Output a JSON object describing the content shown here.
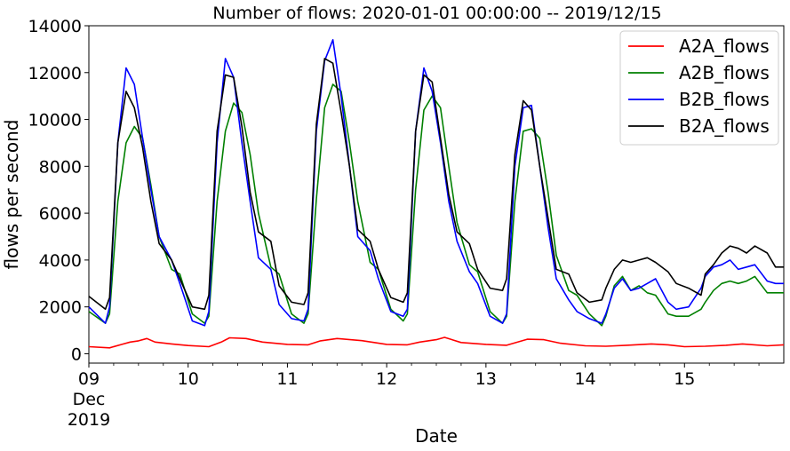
{
  "chart_data": {
    "type": "line",
    "title": "Number of flows: 2020-01-01 00:00:00 -- 2019/12/15",
    "xlabel": "Date",
    "ylabel": "flows per second",
    "xlim": [
      "2019-12-09 00:00",
      "2019-12-16 00:00"
    ],
    "ylim": [
      -400,
      14000
    ],
    "x_ticks": [
      {
        "day": 9,
        "lines": [
          "09",
          "Dec",
          "2019"
        ]
      },
      {
        "day": 10,
        "lines": [
          "10"
        ]
      },
      {
        "day": 11,
        "lines": [
          "11"
        ]
      },
      {
        "day": 12,
        "lines": [
          "12"
        ]
      },
      {
        "day": 13,
        "lines": [
          "13"
        ]
      },
      {
        "day": 14,
        "lines": [
          "14"
        ]
      },
      {
        "day": 15,
        "lines": [
          "15"
        ]
      }
    ],
    "y_ticks": [
      0,
      2000,
      4000,
      6000,
      8000,
      10000,
      12000,
      14000
    ],
    "grid": false,
    "legend_position": "top-right",
    "series": [
      {
        "name": "A2A_flows",
        "color": "#ff0000",
        "x": [
          "2019-12-09 00:00",
          "2019-12-09 05:00",
          "2019-12-09 08:00",
          "2019-12-09 10:00",
          "2019-12-09 12:00",
          "2019-12-09 14:00",
          "2019-12-09 16:00",
          "2019-12-09 20:00",
          "2019-12-10 00:00",
          "2019-12-10 05:00",
          "2019-12-10 08:00",
          "2019-12-10 10:00",
          "2019-12-10 14:00",
          "2019-12-10 18:00",
          "2019-12-11 00:00",
          "2019-12-11 05:00",
          "2019-12-11 08:00",
          "2019-12-11 12:00",
          "2019-12-11 18:00",
          "2019-12-12 00:00",
          "2019-12-12 05:00",
          "2019-12-12 08:00",
          "2019-12-12 12:00",
          "2019-12-12 14:00",
          "2019-12-12 18:00",
          "2019-12-13 00:00",
          "2019-12-13 05:00",
          "2019-12-13 10:00",
          "2019-12-13 14:00",
          "2019-12-13 18:00",
          "2019-12-14 00:00",
          "2019-12-14 05:00",
          "2019-12-14 10:00",
          "2019-12-14 16:00",
          "2019-12-14 20:00",
          "2019-12-15 00:00",
          "2019-12-15 05:00",
          "2019-12-15 10:00",
          "2019-12-15 14:00",
          "2019-12-15 20:00",
          "2019-12-16 00:00"
        ],
        "y": [
          300,
          250,
          400,
          500,
          550,
          650,
          500,
          420,
          350,
          300,
          500,
          680,
          650,
          500,
          400,
          380,
          550,
          650,
          560,
          400,
          380,
          500,
          600,
          700,
          480,
          400,
          360,
          620,
          600,
          450,
          340,
          320,
          360,
          420,
          380,
          300,
          320,
          360,
          420,
          340,
          380
        ]
      },
      {
        "name": "A2B_flows",
        "color": "#008000",
        "x": [
          "2019-12-09 00:00",
          "2019-12-09 04:00",
          "2019-12-09 05:00",
          "2019-12-09 07:00",
          "2019-12-09 09:00",
          "2019-12-09 11:00",
          "2019-12-09 13:00",
          "2019-12-09 15:00",
          "2019-12-09 17:00",
          "2019-12-09 20:00",
          "2019-12-09 22:00",
          "2019-12-10 01:00",
          "2019-12-10 04:00",
          "2019-12-10 05:00",
          "2019-12-10 07:00",
          "2019-12-10 09:00",
          "2019-12-10 11:00",
          "2019-12-10 13:00",
          "2019-12-10 15:00",
          "2019-12-10 17:00",
          "2019-12-10 20:00",
          "2019-12-10 22:00",
          "2019-12-11 01:00",
          "2019-12-11 04:00",
          "2019-12-11 05:00",
          "2019-12-11 07:00",
          "2019-12-11 09:00",
          "2019-12-11 11:00",
          "2019-12-11 13:00",
          "2019-12-11 15:00",
          "2019-12-11 17:00",
          "2019-12-11 20:00",
          "2019-12-11 22:00",
          "2019-12-12 01:00",
          "2019-12-12 04:00",
          "2019-12-12 05:00",
          "2019-12-12 07:00",
          "2019-12-12 09:00",
          "2019-12-12 11:00",
          "2019-12-12 13:00",
          "2019-12-12 15:00",
          "2019-12-12 17:00",
          "2019-12-12 20:00",
          "2019-12-12 22:00",
          "2019-12-13 01:00",
          "2019-12-13 04:00",
          "2019-12-13 05:00",
          "2019-12-13 07:00",
          "2019-12-13 09:00",
          "2019-12-13 11:00",
          "2019-12-13 13:00",
          "2019-12-13 15:00",
          "2019-12-13 17:00",
          "2019-12-13 20:00",
          "2019-12-13 22:00",
          "2019-12-14 01:00",
          "2019-12-14 04:00",
          "2019-12-14 05:00",
          "2019-12-14 07:00",
          "2019-12-14 09:00",
          "2019-12-14 11:00",
          "2019-12-14 13:00",
          "2019-12-14 15:00",
          "2019-12-14 17:00",
          "2019-12-14 20:00",
          "2019-12-14 22:00",
          "2019-12-15 01:00",
          "2019-12-15 04:00",
          "2019-12-15 05:00",
          "2019-12-15 07:00",
          "2019-12-15 09:00",
          "2019-12-15 11:00",
          "2019-12-15 13:00",
          "2019-12-15 15:00",
          "2019-12-15 17:00",
          "2019-12-15 20:00",
          "2019-12-15 22:00",
          "2019-12-16 00:00"
        ],
        "y": [
          1800,
          1300,
          1700,
          6500,
          9000,
          9700,
          9200,
          7200,
          5000,
          3600,
          3400,
          1700,
          1300,
          1600,
          6500,
          9500,
          10700,
          10300,
          8500,
          6000,
          3700,
          3400,
          1700,
          1300,
          1700,
          6600,
          10500,
          11500,
          11200,
          9000,
          6500,
          3900,
          3600,
          1900,
          1400,
          1700,
          7000,
          10400,
          11000,
          10500,
          8000,
          5600,
          3800,
          3500,
          1800,
          1300,
          1600,
          6500,
          9500,
          9600,
          9200,
          6900,
          4200,
          2700,
          2500,
          1700,
          1200,
          1600,
          2900,
          3300,
          2700,
          2900,
          2600,
          2500,
          1700,
          1600,
          1600,
          1900,
          2200,
          2700,
          3000,
          3100,
          3000,
          3100,
          3300,
          2600,
          2600,
          2600
        ]
      },
      {
        "name": "B2B_flows",
        "color": "#0000ff",
        "x": [
          "2019-12-09 00:00",
          "2019-12-09 04:00",
          "2019-12-09 05:00",
          "2019-12-09 07:00",
          "2019-12-09 09:00",
          "2019-12-09 11:00",
          "2019-12-09 13:00",
          "2019-12-09 15:00",
          "2019-12-09 17:00",
          "2019-12-09 20:00",
          "2019-12-09 22:00",
          "2019-12-10 01:00",
          "2019-12-10 04:00",
          "2019-12-10 05:00",
          "2019-12-10 07:00",
          "2019-12-10 09:00",
          "2019-12-10 11:00",
          "2019-12-10 13:00",
          "2019-12-10 15:00",
          "2019-12-10 17:00",
          "2019-12-10 20:00",
          "2019-12-10 22:00",
          "2019-12-11 01:00",
          "2019-12-11 04:00",
          "2019-12-11 05:00",
          "2019-12-11 07:00",
          "2019-12-11 09:00",
          "2019-12-11 11:00",
          "2019-12-11 13:00",
          "2019-12-11 15:00",
          "2019-12-11 17:00",
          "2019-12-11 20:00",
          "2019-12-11 22:00",
          "2019-12-12 01:00",
          "2019-12-12 04:00",
          "2019-12-12 05:00",
          "2019-12-12 07:00",
          "2019-12-12 09:00",
          "2019-12-12 11:00",
          "2019-12-12 13:00",
          "2019-12-12 15:00",
          "2019-12-12 17:00",
          "2019-12-12 20:00",
          "2019-12-12 22:00",
          "2019-12-13 01:00",
          "2019-12-13 04:00",
          "2019-12-13 05:00",
          "2019-12-13 07:00",
          "2019-12-13 09:00",
          "2019-12-13 11:00",
          "2019-12-13 13:00",
          "2019-12-13 15:00",
          "2019-12-13 17:00",
          "2019-12-13 20:00",
          "2019-12-13 22:00",
          "2019-12-14 01:00",
          "2019-12-14 04:00",
          "2019-12-14 05:00",
          "2019-12-14 07:00",
          "2019-12-14 09:00",
          "2019-12-14 11:00",
          "2019-12-14 13:00",
          "2019-12-14 15:00",
          "2019-12-14 17:00",
          "2019-12-14 20:00",
          "2019-12-14 22:00",
          "2019-12-15 01:00",
          "2019-12-15 04:00",
          "2019-12-15 05:00",
          "2019-12-15 07:00",
          "2019-12-15 09:00",
          "2019-12-15 11:00",
          "2019-12-15 13:00",
          "2019-12-15 15:00",
          "2019-12-15 17:00",
          "2019-12-15 20:00",
          "2019-12-15 22:00",
          "2019-12-16 00:00"
        ],
        "y": [
          2000,
          1300,
          2000,
          9000,
          12200,
          11500,
          9200,
          7000,
          5000,
          4000,
          3000,
          1400,
          1200,
          1800,
          9000,
          12600,
          11800,
          9000,
          6500,
          4100,
          3600,
          2100,
          1500,
          1400,
          1900,
          9500,
          12500,
          13400,
          11000,
          8000,
          5000,
          4400,
          3200,
          1800,
          1600,
          1900,
          9500,
          12200,
          11200,
          9000,
          6500,
          4800,
          3500,
          3000,
          1600,
          1300,
          1700,
          8000,
          10500,
          10600,
          8000,
          5400,
          3200,
          2300,
          1800,
          1500,
          1300,
          1700,
          2800,
          3200,
          2700,
          2800,
          3000,
          3200,
          2200,
          1900,
          2000,
          2800,
          3300,
          3700,
          3800,
          4000,
          3600,
          3700,
          3800,
          3100,
          3000,
          3000
        ]
      },
      {
        "name": "B2A_flows",
        "color": "#000000",
        "x": [
          "2019-12-09 00:00",
          "2019-12-09 04:00",
          "2019-12-09 05:00",
          "2019-12-09 07:00",
          "2019-12-09 09:00",
          "2019-12-09 11:00",
          "2019-12-09 13:00",
          "2019-12-09 15:00",
          "2019-12-09 17:00",
          "2019-12-09 20:00",
          "2019-12-09 22:00",
          "2019-12-10 01:00",
          "2019-12-10 04:00",
          "2019-12-10 05:00",
          "2019-12-10 07:00",
          "2019-12-10 09:00",
          "2019-12-10 11:00",
          "2019-12-10 13:00",
          "2019-12-10 15:00",
          "2019-12-10 17:00",
          "2019-12-10 20:00",
          "2019-12-10 22:00",
          "2019-12-11 01:00",
          "2019-12-11 04:00",
          "2019-12-11 05:00",
          "2019-12-11 07:00",
          "2019-12-11 09:00",
          "2019-12-11 11:00",
          "2019-12-11 13:00",
          "2019-12-11 15:00",
          "2019-12-11 17:00",
          "2019-12-11 20:00",
          "2019-12-11 22:00",
          "2019-12-12 01:00",
          "2019-12-12 04:00",
          "2019-12-12 05:00",
          "2019-12-12 07:00",
          "2019-12-12 09:00",
          "2019-12-12 11:00",
          "2019-12-12 13:00",
          "2019-12-12 15:00",
          "2019-12-12 17:00",
          "2019-12-12 20:00",
          "2019-12-12 22:00",
          "2019-12-13 01:00",
          "2019-12-13 04:00",
          "2019-12-13 05:00",
          "2019-12-13 07:00",
          "2019-12-13 09:00",
          "2019-12-13 11:00",
          "2019-12-13 13:00",
          "2019-12-13 15:00",
          "2019-12-13 17:00",
          "2019-12-13 20:00",
          "2019-12-13 22:00",
          "2019-12-14 01:00",
          "2019-12-14 04:00",
          "2019-12-14 05:00",
          "2019-12-14 07:00",
          "2019-12-14 09:00",
          "2019-12-14 11:00",
          "2019-12-14 13:00",
          "2019-12-14 15:00",
          "2019-12-14 17:00",
          "2019-12-14 20:00",
          "2019-12-14 22:00",
          "2019-12-15 01:00",
          "2019-12-15 04:00",
          "2019-12-15 05:00",
          "2019-12-15 07:00",
          "2019-12-15 09:00",
          "2019-12-15 11:00",
          "2019-12-15 13:00",
          "2019-12-15 15:00",
          "2019-12-15 17:00",
          "2019-12-15 20:00",
          "2019-12-15 22:00",
          "2019-12-16 00:00"
        ],
        "y": [
          2450,
          1900,
          2400,
          9000,
          11200,
          10500,
          8800,
          6500,
          4700,
          4000,
          3200,
          2000,
          1900,
          2500,
          9500,
          11900,
          11800,
          9700,
          6900,
          5200,
          4800,
          2900,
          2200,
          2100,
          2600,
          9800,
          12600,
          12400,
          10300,
          8000,
          5300,
          4800,
          3600,
          2400,
          2200,
          2600,
          9500,
          11900,
          11600,
          9200,
          6800,
          5200,
          4700,
          3600,
          2800,
          2700,
          3200,
          8500,
          10800,
          10400,
          8000,
          5800,
          3600,
          3400,
          2600,
          2200,
          2300,
          2800,
          3600,
          4000,
          3900,
          4000,
          4100,
          3900,
          3500,
          3000,
          2800,
          2500,
          3400,
          3800,
          4300,
          4600,
          4500,
          4300,
          4600,
          4300,
          3700,
          3700
        ]
      }
    ]
  }
}
